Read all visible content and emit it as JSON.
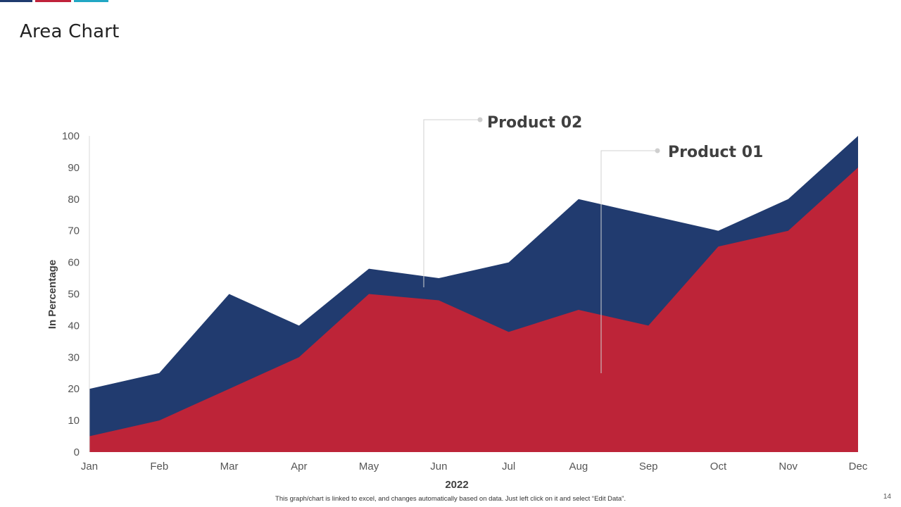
{
  "header": {
    "title": "Area Chart"
  },
  "decor": {
    "bar_colors": [
      "#1f3a6e",
      "#c0223a",
      "#22a7c4"
    ]
  },
  "footer": {
    "note": "This graph/chart is linked to excel, and changes automatically based on data. Just left click on it and select “Edit Data”.",
    "page_number": "14"
  },
  "chart_data": {
    "type": "area",
    "categories": [
      "Jan",
      "Feb",
      "Mar",
      "Apr",
      "May",
      "Jun",
      "Jul",
      "Aug",
      "Sep",
      "Oct",
      "Nov",
      "Dec"
    ],
    "series": [
      {
        "name": "Product 01",
        "color": "#bd2438",
        "values": [
          5,
          10,
          20,
          30,
          50,
          48,
          38,
          45,
          40,
          65,
          70,
          90
        ]
      },
      {
        "name": "Product 02",
        "color": "#213b6f",
        "values": [
          20,
          25,
          50,
          40,
          58,
          55,
          60,
          80,
          75,
          70,
          80,
          100
        ]
      }
    ],
    "xlabel": "2022",
    "ylabel": "In Percentage",
    "ylim": [
      0,
      100
    ],
    "yticks": [
      0,
      10,
      20,
      30,
      40,
      50,
      60,
      70,
      80,
      90,
      100
    ],
    "grid": false,
    "legend": "callouts"
  }
}
